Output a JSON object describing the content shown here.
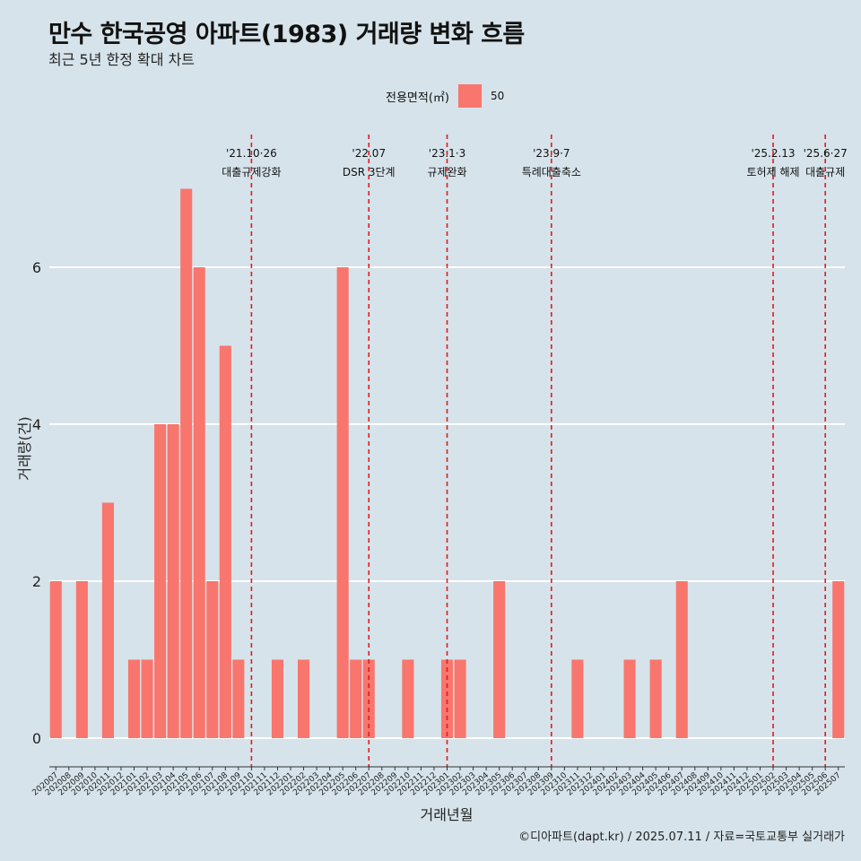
{
  "title": "만수 한국공영 아파트(1983) 거래량 변화 흐름",
  "subtitle": "최근 5년 한정 확대 차트",
  "legend": {
    "title": "전용면적(㎡)",
    "entries": [
      "50"
    ]
  },
  "caption": "©디아파트(dapt.kr) / 2025.07.11 / 자료=국토교통부 실거래가",
  "colors": {
    "bar": "#f8766d",
    "event_line": "#e41a1c",
    "background": "#d6e3ea",
    "grid": "#ffffff"
  },
  "chart_data": {
    "type": "bar",
    "xlabel": "거래년월",
    "ylabel": "거래량(건)",
    "ylim": [
      0,
      7
    ],
    "yticks": [
      0,
      2,
      4,
      6
    ],
    "grid": true,
    "legend_position": "top",
    "categories": [
      "202007",
      "202008",
      "202009",
      "202010",
      "202011",
      "202012",
      "202101",
      "202102",
      "202103",
      "202104",
      "202105",
      "202106",
      "202107",
      "202108",
      "202109",
      "202110",
      "202111",
      "202112",
      "202201",
      "202202",
      "202203",
      "202204",
      "202205",
      "202206",
      "202207",
      "202208",
      "202209",
      "202210",
      "202211",
      "202212",
      "202301",
      "202302",
      "202303",
      "202304",
      "202305",
      "202306",
      "202307",
      "202308",
      "202309",
      "202310",
      "202311",
      "202312",
      "202401",
      "202402",
      "202403",
      "202404",
      "202405",
      "202406",
      "202407",
      "202408",
      "202409",
      "202410",
      "202411",
      "202412",
      "202501",
      "202502",
      "202503",
      "202504",
      "202505",
      "202506",
      "202507"
    ],
    "series": [
      {
        "name": "50",
        "values": [
          2,
          0,
          2,
          0,
          3,
          0,
          1,
          1,
          4,
          4,
          7,
          6,
          2,
          5,
          1,
          0,
          0,
          1,
          0,
          1,
          0,
          0,
          6,
          1,
          1,
          0,
          0,
          1,
          0,
          0,
          1,
          1,
          0,
          0,
          2,
          0,
          0,
          0,
          0,
          0,
          1,
          0,
          0,
          0,
          1,
          0,
          1,
          0,
          2,
          0,
          0,
          0,
          0,
          0,
          0,
          0,
          0,
          0,
          0,
          0,
          2
        ]
      }
    ],
    "events": [
      {
        "date": "202110",
        "line1": "'21.10·26",
        "line2": "대출규제강화"
      },
      {
        "date": "202207",
        "line1": "'22.07",
        "line2": "DSR 3단계"
      },
      {
        "date": "202301",
        "line1": "'23.1·3",
        "line2": "규제완화"
      },
      {
        "date": "202309",
        "line1": "'23.9·7",
        "line2": "특례대출축소"
      },
      {
        "date": "202502",
        "line1": "'25.2.13",
        "line2": "토허제 해제"
      },
      {
        "date": "202506",
        "line1": "'25.6·27",
        "line2": "대출규제"
      }
    ]
  }
}
